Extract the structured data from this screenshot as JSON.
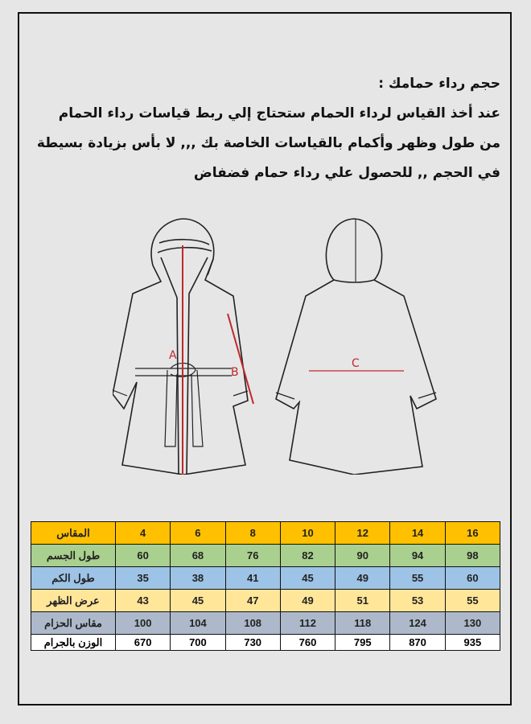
{
  "description_text": {
    "lines": [
      "حجم رداء حمامك :",
      "عند أخذ القياس لرداء الحمام ستحتاج إلي ربط قياسات رداء الحمام",
      "من طول وظهر وأكمام بالقياسات الخاصة بك ,,, لا بأس بزيادة بسيطة",
      "في الحجم ,, للحصول علي رداء حمام فضفاض"
    ]
  },
  "diagram": {
    "labels": {
      "a": "A",
      "b": "B",
      "c": "C"
    },
    "measure_color": "#c0272d"
  },
  "size_table": {
    "rows": [
      {
        "label": "المقاس",
        "color": "#ffc000",
        "values": [
          "4",
          "6",
          "8",
          "10",
          "12",
          "14",
          "16"
        ]
      },
      {
        "label": "طول الجسم",
        "color": "#a9d08e",
        "values": [
          "60",
          "68",
          "76",
          "82",
          "90",
          "94",
          "98"
        ]
      },
      {
        "label": "طول الكم",
        "color": "#9dc3e6",
        "values": [
          "35",
          "38",
          "41",
          "45",
          "49",
          "55",
          "60"
        ]
      },
      {
        "label": "عرض الظهر",
        "color": "#ffe699",
        "values": [
          "43",
          "45",
          "47",
          "49",
          "51",
          "53",
          "55"
        ]
      },
      {
        "label": "مقاس الحزام",
        "color": "#adb9ca",
        "values": [
          "100",
          "104",
          "108",
          "112",
          "118",
          "124",
          "130"
        ]
      },
      {
        "label": "الوزن بالجرام",
        "color": "#ffffff",
        "values": [
          "670",
          "700",
          "730",
          "760",
          "795",
          "870",
          "935"
        ]
      }
    ]
  }
}
